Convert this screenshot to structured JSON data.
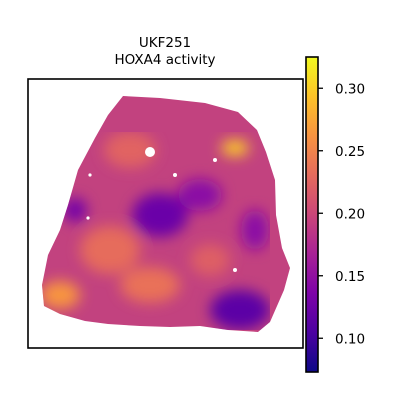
{
  "chart_data": {
    "type": "heatmap",
    "title_lines": [
      "UKF251",
      "HOXA4 activity"
    ],
    "colormap": "plasma",
    "colorbar": {
      "range": [
        0.073,
        0.325
      ],
      "ticks": [
        0.1,
        0.15,
        0.2,
        0.25,
        0.3
      ],
      "tick_labels": [
        "0.10",
        "0.15",
        "0.20",
        "0.25",
        "0.30"
      ],
      "placement": "right"
    },
    "xlabel": "",
    "ylabel": "",
    "axes_ticks": false,
    "grid": false
  }
}
